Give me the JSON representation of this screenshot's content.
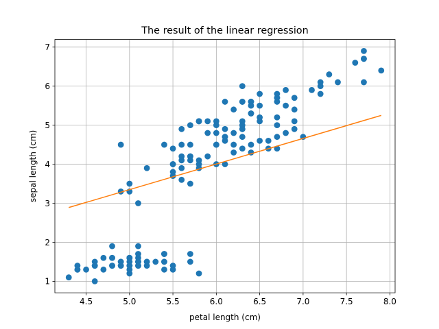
{
  "chart_data": {
    "type": "scatter",
    "title": "The result of the linear regression",
    "xlabel": "petal length (cm)",
    "ylabel": "sepal length (cm)",
    "xlim": [
      4.14,
      8.06
    ],
    "ylim": [
      0.705,
      7.195
    ],
    "xticks": [
      4.5,
      5.0,
      5.5,
      6.0,
      6.5,
      7.0,
      7.5,
      8.0
    ],
    "yticks": [
      1,
      2,
      3,
      4,
      5,
      6,
      7
    ],
    "xtick_labels": [
      "4.5",
      "5.0",
      "5.5",
      "6.0",
      "6.5",
      "7.0",
      "7.5",
      "8.0"
    ],
    "ytick_labels": [
      "1",
      "2",
      "3",
      "4",
      "5",
      "6",
      "7"
    ],
    "grid": true,
    "colors": {
      "points": "#1f77b4",
      "regression": "#ff7f0e",
      "grid": "#b0b0b0"
    },
    "series": [
      {
        "kind": "scatter",
        "points": [
          [
            5.1,
            1.4
          ],
          [
            4.9,
            1.4
          ],
          [
            4.7,
            1.3
          ],
          [
            4.6,
            1.5
          ],
          [
            5.0,
            1.4
          ],
          [
            5.4,
            1.7
          ],
          [
            4.6,
            1.4
          ],
          [
            5.0,
            1.5
          ],
          [
            4.4,
            1.4
          ],
          [
            4.9,
            1.5
          ],
          [
            5.4,
            1.5
          ],
          [
            4.8,
            1.6
          ],
          [
            4.8,
            1.4
          ],
          [
            4.3,
            1.1
          ],
          [
            5.8,
            1.2
          ],
          [
            5.7,
            1.5
          ],
          [
            5.4,
            1.3
          ],
          [
            5.1,
            1.4
          ],
          [
            5.7,
            1.7
          ],
          [
            5.1,
            1.5
          ],
          [
            5.4,
            1.7
          ],
          [
            5.1,
            1.5
          ],
          [
            4.6,
            1.0
          ],
          [
            5.1,
            1.7
          ],
          [
            4.8,
            1.9
          ],
          [
            5.0,
            1.6
          ],
          [
            5.0,
            1.6
          ],
          [
            5.2,
            1.5
          ],
          [
            5.2,
            1.4
          ],
          [
            4.7,
            1.6
          ],
          [
            4.8,
            1.6
          ],
          [
            5.4,
            1.5
          ],
          [
            5.2,
            1.5
          ],
          [
            5.5,
            1.4
          ],
          [
            4.9,
            1.5
          ],
          [
            5.0,
            1.2
          ],
          [
            5.5,
            1.3
          ],
          [
            4.9,
            1.4
          ],
          [
            4.4,
            1.3
          ],
          [
            5.1,
            1.5
          ],
          [
            5.0,
            1.3
          ],
          [
            4.5,
            1.3
          ],
          [
            4.4,
            1.3
          ],
          [
            5.0,
            1.6
          ],
          [
            5.1,
            1.9
          ],
          [
            4.8,
            1.4
          ],
          [
            5.1,
            1.6
          ],
          [
            4.6,
            1.4
          ],
          [
            5.3,
            1.5
          ],
          [
            5.0,
            1.4
          ],
          [
            7.0,
            4.7
          ],
          [
            6.4,
            4.5
          ],
          [
            6.9,
            4.9
          ],
          [
            5.5,
            4.0
          ],
          [
            6.5,
            4.6
          ],
          [
            5.7,
            4.5
          ],
          [
            6.3,
            4.7
          ],
          [
            4.9,
            3.3
          ],
          [
            6.6,
            4.6
          ],
          [
            5.2,
            3.9
          ],
          [
            5.0,
            3.5
          ],
          [
            5.9,
            4.2
          ],
          [
            6.0,
            4.0
          ],
          [
            6.1,
            4.7
          ],
          [
            5.6,
            3.6
          ],
          [
            6.7,
            4.4
          ],
          [
            5.6,
            4.5
          ],
          [
            5.8,
            4.1
          ],
          [
            6.2,
            4.5
          ],
          [
            5.6,
            3.9
          ],
          [
            5.9,
            4.8
          ],
          [
            6.1,
            4.0
          ],
          [
            6.3,
            4.9
          ],
          [
            6.1,
            4.7
          ],
          [
            6.4,
            4.3
          ],
          [
            6.6,
            4.4
          ],
          [
            6.8,
            4.8
          ],
          [
            6.7,
            5.0
          ],
          [
            6.0,
            4.5
          ],
          [
            5.7,
            3.5
          ],
          [
            5.5,
            3.8
          ],
          [
            5.5,
            3.7
          ],
          [
            5.8,
            3.9
          ],
          [
            6.0,
            5.1
          ],
          [
            5.4,
            4.5
          ],
          [
            6.0,
            4.5
          ],
          [
            6.7,
            4.7
          ],
          [
            6.3,
            4.4
          ],
          [
            5.6,
            4.1
          ],
          [
            5.5,
            4.0
          ],
          [
            5.5,
            4.4
          ],
          [
            6.1,
            4.6
          ],
          [
            5.8,
            4.0
          ],
          [
            5.0,
            3.3
          ],
          [
            5.6,
            4.2
          ],
          [
            5.7,
            4.2
          ],
          [
            5.7,
            4.2
          ],
          [
            6.2,
            4.3
          ],
          [
            5.1,
            3.0
          ],
          [
            5.7,
            4.1
          ],
          [
            6.3,
            6.0
          ],
          [
            5.8,
            5.1
          ],
          [
            7.1,
            5.9
          ],
          [
            6.3,
            5.6
          ],
          [
            6.5,
            5.8
          ],
          [
            7.6,
            6.6
          ],
          [
            4.9,
            4.5
          ],
          [
            7.3,
            6.3
          ],
          [
            6.7,
            5.8
          ],
          [
            7.2,
            6.1
          ],
          [
            6.5,
            5.1
          ],
          [
            6.4,
            5.3
          ],
          [
            6.8,
            5.5
          ],
          [
            5.7,
            5.0
          ],
          [
            5.8,
            5.1
          ],
          [
            6.4,
            5.3
          ],
          [
            6.5,
            5.5
          ],
          [
            7.7,
            6.7
          ],
          [
            7.7,
            6.9
          ],
          [
            6.0,
            5.0
          ],
          [
            6.9,
            5.7
          ],
          [
            5.6,
            4.9
          ],
          [
            7.7,
            6.7
          ],
          [
            6.3,
            4.9
          ],
          [
            6.7,
            5.7
          ],
          [
            7.2,
            6.0
          ],
          [
            6.2,
            4.8
          ],
          [
            6.1,
            4.9
          ],
          [
            6.4,
            5.6
          ],
          [
            7.2,
            5.8
          ],
          [
            7.4,
            6.1
          ],
          [
            7.9,
            6.4
          ],
          [
            6.4,
            5.6
          ],
          [
            6.3,
            5.1
          ],
          [
            6.1,
            5.6
          ],
          [
            7.7,
            6.1
          ],
          [
            6.3,
            5.6
          ],
          [
            6.4,
            5.5
          ],
          [
            6.0,
            4.8
          ],
          [
            6.9,
            5.4
          ],
          [
            6.7,
            5.6
          ],
          [
            6.9,
            5.1
          ],
          [
            5.8,
            5.1
          ],
          [
            6.8,
            5.9
          ],
          [
            6.7,
            5.7
          ],
          [
            6.7,
            5.2
          ],
          [
            6.3,
            5.0
          ],
          [
            6.5,
            5.2
          ],
          [
            6.2,
            5.4
          ],
          [
            5.9,
            5.1
          ]
        ]
      },
      {
        "kind": "line",
        "points": [
          [
            4.3,
            2.89
          ],
          [
            7.9,
            5.25
          ]
        ]
      }
    ]
  }
}
